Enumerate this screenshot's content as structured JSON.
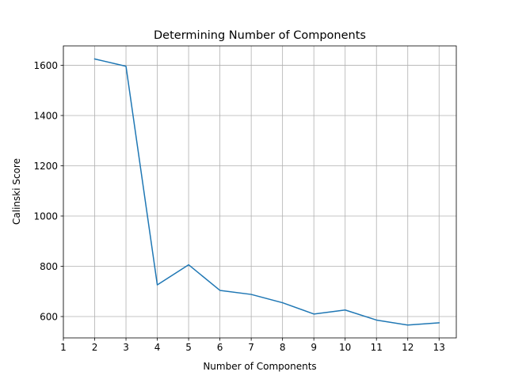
{
  "chart_data": {
    "type": "line",
    "title": "Determining Number of Components",
    "xlabel": "Number of Components",
    "ylabel": "Calinski Score",
    "x": [
      2,
      3,
      4,
      5,
      6,
      7,
      8,
      9,
      10,
      11,
      12,
      13
    ],
    "series": [
      {
        "values": [
          1625,
          1596,
          726,
          806,
          704,
          688,
          655,
          610,
          626,
          586,
          566,
          575
        ],
        "color": "#1f77b4"
      }
    ],
    "xlim": [
      1,
      13.55
    ],
    "ylim": [
      515,
      1677
    ],
    "xticks": [
      "1",
      "2",
      "3",
      "4",
      "5",
      "6",
      "7",
      "8",
      "9",
      "10",
      "11",
      "12",
      "13"
    ],
    "yticks": [
      "600",
      "800",
      "1000",
      "1200",
      "1400",
      "1600"
    ],
    "grid": true,
    "legend": "none"
  }
}
